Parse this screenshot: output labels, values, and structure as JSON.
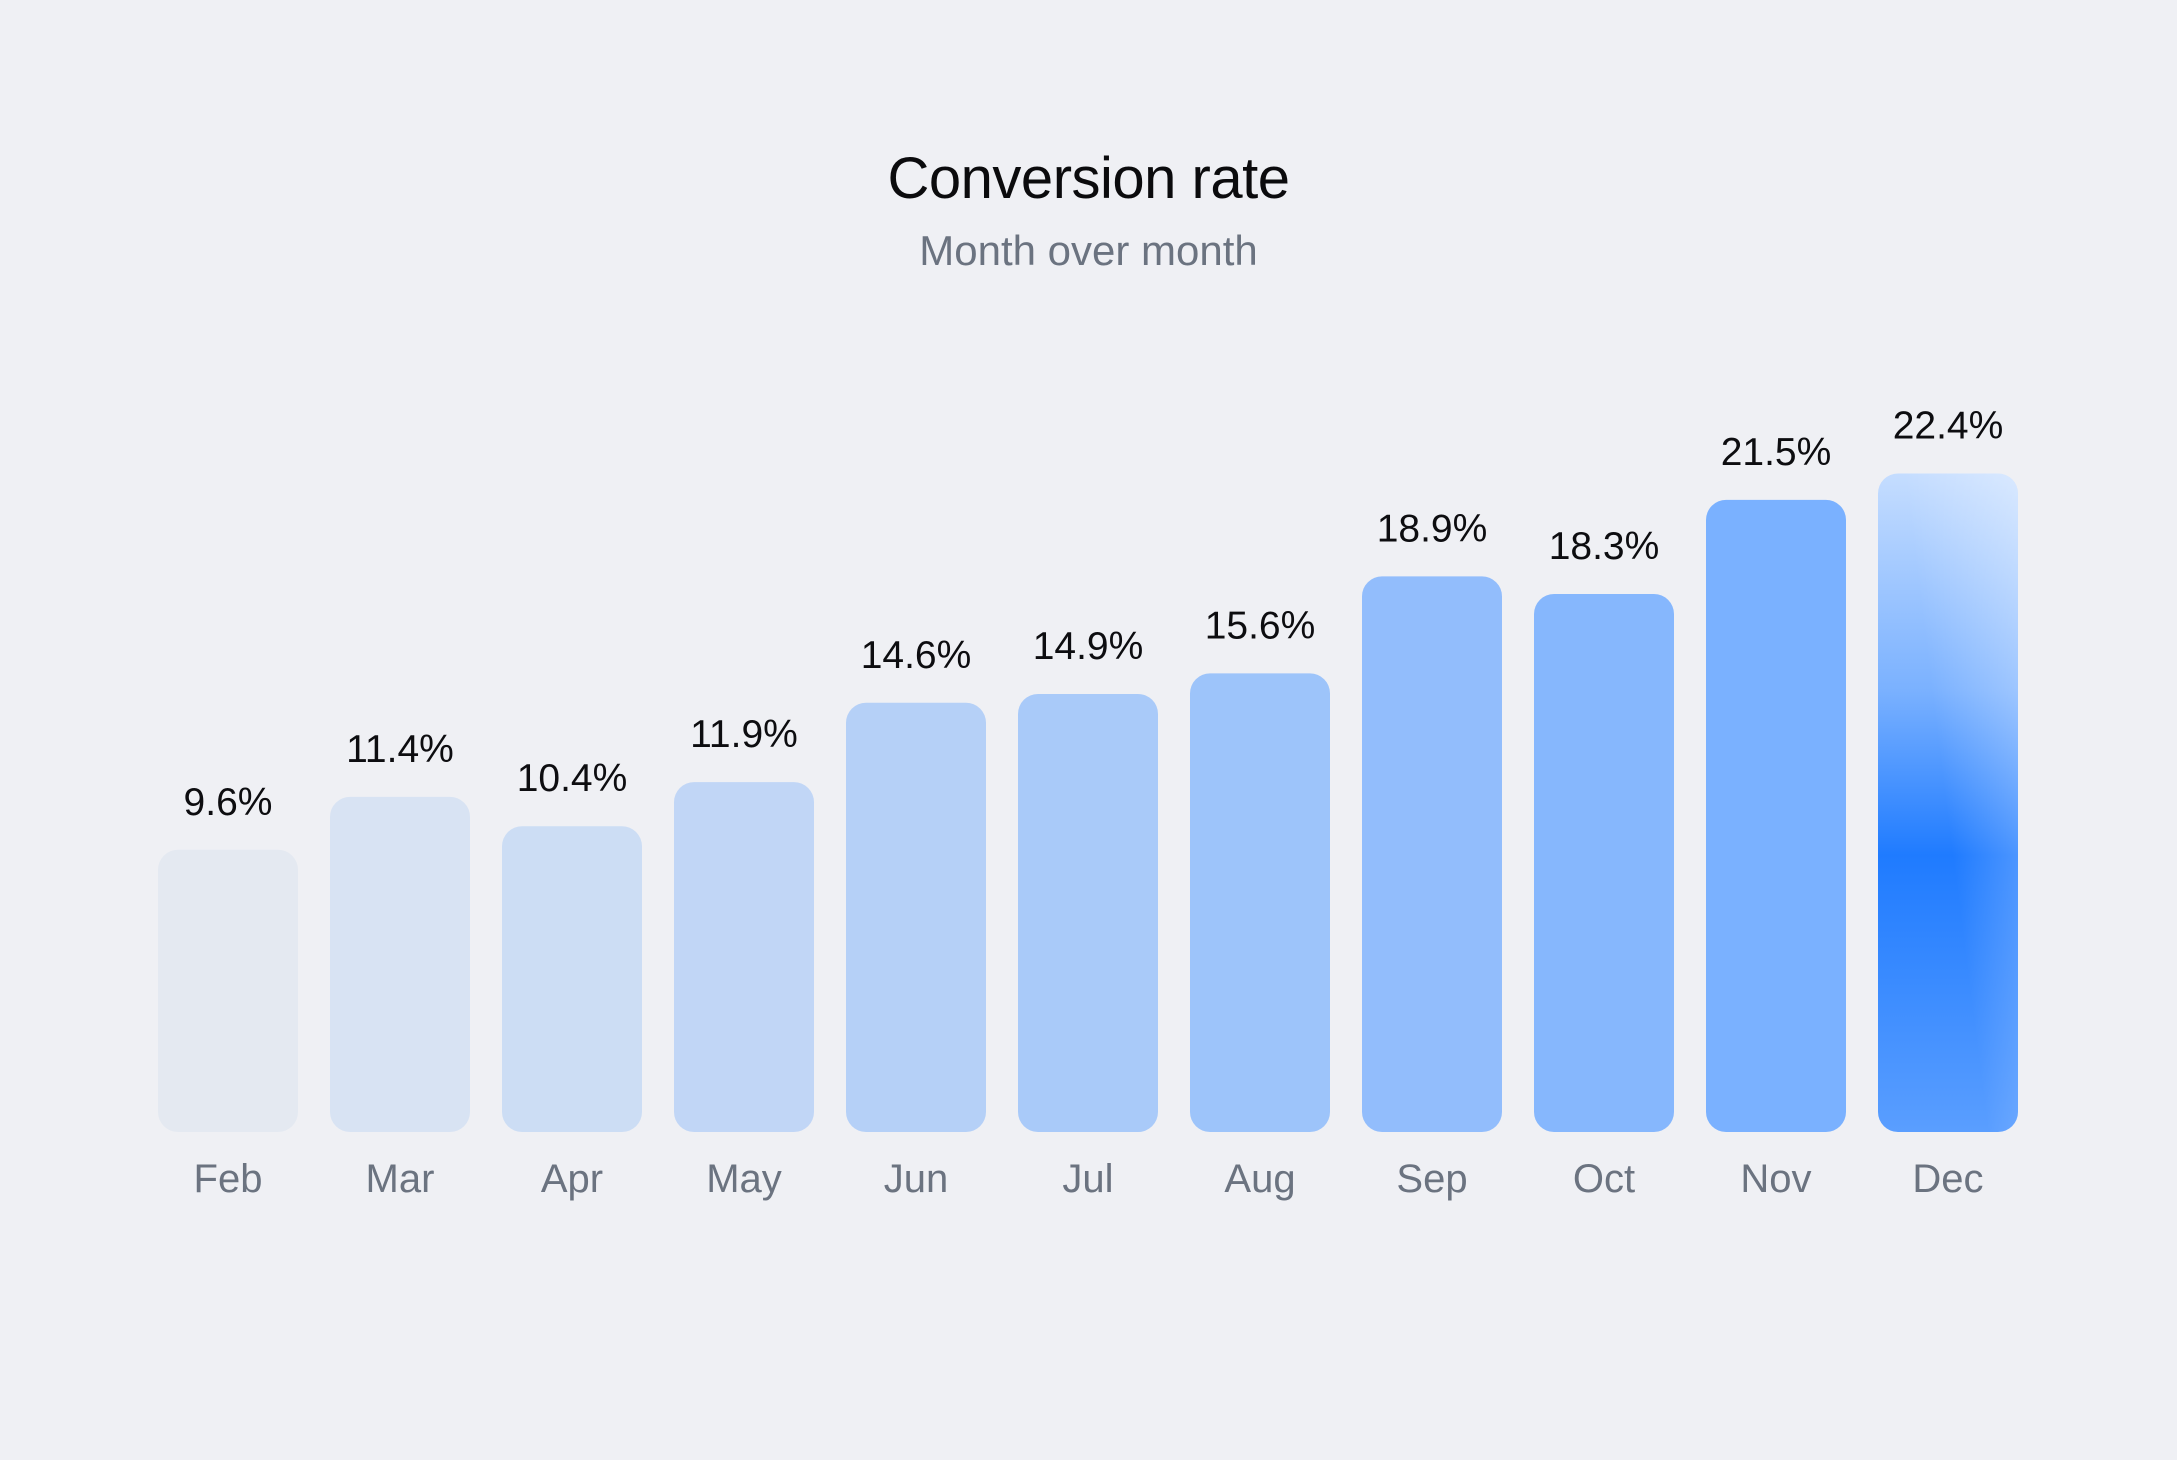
{
  "chart_data": {
    "type": "bar",
    "title": "Conversion rate",
    "subtitle": "Month over month",
    "xlabel": "",
    "ylabel": "",
    "categories": [
      "Feb",
      "Mar",
      "Apr",
      "May",
      "Jun",
      "Jul",
      "Aug",
      "Sep",
      "Oct",
      "Nov",
      "Dec"
    ],
    "values": [
      9.6,
      11.4,
      10.4,
      11.9,
      14.6,
      14.9,
      15.6,
      18.9,
      18.3,
      21.5,
      22.4
    ],
    "value_labels": [
      "9.6%",
      "11.4%",
      "10.4%",
      "11.9%",
      "14.6%",
      "14.9%",
      "15.6%",
      "18.9%",
      "18.3%",
      "21.5%",
      "22.4%"
    ],
    "grid": false,
    "legend": "none",
    "colors": {
      "background": "#eff0f4",
      "bar_start": "#e4e9f1",
      "bar_end": "#7ab1ff",
      "highlight_top": "#c5ddff",
      "highlight_mid": "#1f7bff",
      "highlight_bottom": "#5a9eff"
    }
  }
}
